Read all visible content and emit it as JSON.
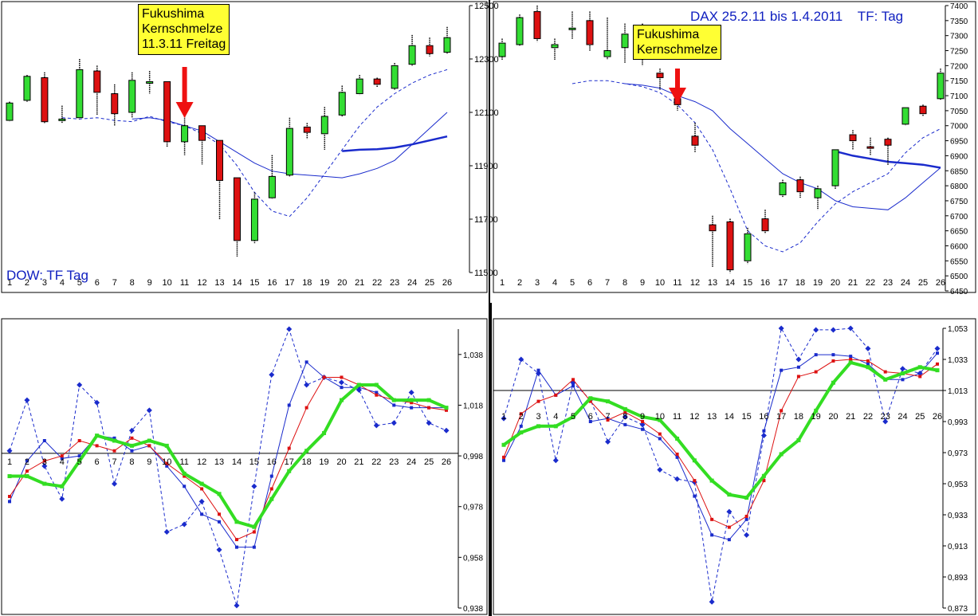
{
  "colors": {
    "bull": "#33dd33",
    "bear": "#dd1111",
    "ma": "#1a2bcc",
    "green": "#33dd22",
    "red": "#dd1111",
    "blue": "#1a2bcc",
    "arrow": "#ee1111",
    "callout": "#ffff33"
  },
  "chart_data": [
    {
      "type": "candlestick",
      "title": "DOW: TF Tag",
      "callout": [
        "Fukushima",
        "Kernschmelze",
        "11.3.11 Freitag"
      ],
      "categories": [
        "1",
        "2",
        "3",
        "4",
        "5",
        "6",
        "7",
        "8",
        "9",
        "10",
        "11",
        "12",
        "13",
        "14",
        "15",
        "16",
        "17",
        "18",
        "19",
        "20",
        "21",
        "22",
        "23",
        "24",
        "25",
        "26"
      ],
      "ylim": [
        11500,
        12500
      ],
      "yticks": [
        "11500",
        "11700",
        "11900",
        "12100",
        "12300",
        "12500"
      ],
      "arrow_at": 11,
      "candles": [
        {
          "o": 12070,
          "h": 12140,
          "l": 12065,
          "c": 12135
        },
        {
          "o": 12145,
          "h": 12240,
          "l": 12140,
          "c": 12235
        },
        {
          "o": 12230,
          "h": 12250,
          "l": 12060,
          "c": 12065
        },
        {
          "o": 12070,
          "h": 12125,
          "l": 12060,
          "c": 12075
        },
        {
          "o": 12080,
          "h": 12300,
          "l": 12075,
          "c": 12260
        },
        {
          "o": 12255,
          "h": 12275,
          "l": 12090,
          "c": 12175
        },
        {
          "o": 12170,
          "h": 12205,
          "l": 12050,
          "c": 12095
        },
        {
          "o": 12100,
          "h": 12250,
          "l": 12080,
          "c": 12220
        },
        {
          "o": 12210,
          "h": 12255,
          "l": 12170,
          "c": 12215
        },
        {
          "o": 12215,
          "h": 12215,
          "l": 11970,
          "c": 11990
        },
        {
          "o": 11990,
          "h": 12100,
          "l": 11940,
          "c": 12050
        },
        {
          "o": 12050,
          "h": 12050,
          "l": 11905,
          "c": 11995
        },
        {
          "o": 11995,
          "h": 11995,
          "l": 11700,
          "c": 11845
        },
        {
          "o": 11855,
          "h": 11855,
          "l": 11560,
          "c": 11620
        },
        {
          "o": 11620,
          "h": 11800,
          "l": 11610,
          "c": 11775
        },
        {
          "o": 11780,
          "h": 11940,
          "l": 11775,
          "c": 11860
        },
        {
          "o": 11865,
          "h": 12080,
          "l": 11860,
          "c": 12040
        },
        {
          "o": 12045,
          "h": 12060,
          "l": 12000,
          "c": 12025
        },
        {
          "o": 12020,
          "h": 12120,
          "l": 11960,
          "c": 12085
        },
        {
          "o": 12090,
          "h": 12200,
          "l": 12085,
          "c": 12175
        },
        {
          "o": 12170,
          "h": 12240,
          "l": 12165,
          "c": 12225
        },
        {
          "o": 12225,
          "h": 12230,
          "l": 12195,
          "c": 12205
        },
        {
          "o": 12190,
          "h": 12285,
          "l": 12185,
          "c": 12275
        },
        {
          "o": 12280,
          "h": 12390,
          "l": 12275,
          "c": 12350
        },
        {
          "o": 12350,
          "h": 12380,
          "l": 12310,
          "c": 12320
        },
        {
          "o": 12325,
          "h": 12420,
          "l": 12320,
          "c": 12380
        }
      ],
      "lines": [
        {
          "style": "dashed",
          "x": [
            4,
            5,
            6,
            7,
            8,
            9,
            10,
            11,
            12,
            13,
            14,
            15,
            16,
            17,
            18,
            19,
            20,
            21,
            22,
            23,
            24,
            25,
            26
          ],
          "y": [
            12080,
            12075,
            12080,
            12070,
            12065,
            12085,
            12065,
            12050,
            12020,
            11980,
            11900,
            11800,
            11730,
            11710,
            11780,
            11870,
            11960,
            12050,
            12120,
            12170,
            12210,
            12240,
            12260
          ]
        },
        {
          "style": "solid",
          "x": [
            8,
            9,
            10,
            11,
            12,
            13,
            14,
            15,
            16,
            17,
            18,
            19,
            20,
            21,
            22,
            23,
            24,
            25,
            26
          ],
          "y": [
            12075,
            12080,
            12070,
            12050,
            12030,
            11990,
            11950,
            11910,
            11880,
            11870,
            11865,
            11860,
            11855,
            11870,
            11890,
            11920,
            11980,
            12040,
            12100
          ]
        },
        {
          "style": "thick",
          "x": [
            20,
            21,
            22,
            23,
            24,
            25,
            26
          ],
          "y": [
            11955,
            11960,
            11962,
            11968,
            11980,
            11995,
            12010
          ]
        }
      ]
    },
    {
      "type": "candlestick",
      "title": "DAX 25.2.11 bis 1.4.2011    TF: Tag",
      "callout": [
        "Fukushima",
        "Kernschmelze"
      ],
      "categories": [
        "1",
        "2",
        "3",
        "4",
        "5",
        "6",
        "7",
        "8",
        "9",
        "10",
        "11",
        "12",
        "13",
        "14",
        "15",
        "16",
        "17",
        "18",
        "19",
        "20",
        "21",
        "22",
        "23",
        "24",
        "25",
        "26"
      ],
      "ylim": [
        6450,
        7400
      ],
      "yticks": [
        "6450",
        "6500",
        "6550",
        "6600",
        "6650",
        "6700",
        "6750",
        "6800",
        "6850",
        "6900",
        "6950",
        "7000",
        "7050",
        "7100",
        "7150",
        "7200",
        "7250",
        "7300",
        "7350",
        "7400"
      ],
      "arrow_at": 11,
      "candles": [
        {
          "o": 7230,
          "h": 7290,
          "l": 7220,
          "c": 7275
        },
        {
          "o": 7270,
          "h": 7370,
          "l": 7265,
          "c": 7360
        },
        {
          "o": 7380,
          "h": 7400,
          "l": 7280,
          "c": 7290
        },
        {
          "o": 7260,
          "h": 7290,
          "l": 7220,
          "c": 7270
        },
        {
          "o": 7320,
          "h": 7380,
          "l": 7290,
          "c": 7325
        },
        {
          "o": 7350,
          "h": 7380,
          "l": 7250,
          "c": 7270
        },
        {
          "o": 7230,
          "h": 7360,
          "l": 7220,
          "c": 7250
        },
        {
          "o": 7260,
          "h": 7340,
          "l": 7210,
          "c": 7305
        },
        {
          "o": 7270,
          "h": 7340,
          "l": 7200,
          "c": 7230
        },
        {
          "o": 7175,
          "h": 7190,
          "l": 7120,
          "c": 7160
        },
        {
          "o": 7090,
          "h": 7105,
          "l": 7050,
          "c": 7070
        },
        {
          "o": 6965,
          "h": 7010,
          "l": 6910,
          "c": 6935
        },
        {
          "o": 6670,
          "h": 6700,
          "l": 6530,
          "c": 6650
        },
        {
          "o": 6680,
          "h": 6690,
          "l": 6510,
          "c": 6520
        },
        {
          "o": 6550,
          "h": 6660,
          "l": 6540,
          "c": 6640
        },
        {
          "o": 6690,
          "h": 6720,
          "l": 6640,
          "c": 6650
        },
        {
          "o": 6770,
          "h": 6820,
          "l": 6760,
          "c": 6810
        },
        {
          "o": 6820,
          "h": 6830,
          "l": 6760,
          "c": 6780
        },
        {
          "o": 6760,
          "h": 6800,
          "l": 6720,
          "c": 6790
        },
        {
          "o": 6800,
          "h": 6920,
          "l": 6790,
          "c": 6920
        },
        {
          "o": 6970,
          "h": 6985,
          "l": 6920,
          "c": 6950
        },
        {
          "o": 6930,
          "h": 6960,
          "l": 6900,
          "c": 6925
        },
        {
          "o": 6955,
          "h": 6960,
          "l": 6870,
          "c": 6935
        },
        {
          "o": 7005,
          "h": 7060,
          "l": 7000,
          "c": 7060
        },
        {
          "o": 7065,
          "h": 7070,
          "l": 7030,
          "c": 7040
        },
        {
          "o": 7090,
          "h": 7190,
          "l": 7085,
          "c": 7175
        }
      ],
      "lines": [
        {
          "style": "dashed",
          "x": [
            5,
            6,
            7,
            8,
            9,
            10,
            11,
            12,
            13,
            14,
            15,
            16,
            17,
            18,
            19,
            20,
            21,
            22,
            23,
            24,
            25,
            26
          ],
          "y": [
            7140,
            7150,
            7150,
            7140,
            7130,
            7110,
            7070,
            7010,
            6920,
            6790,
            6650,
            6600,
            6580,
            6610,
            6680,
            6740,
            6780,
            6810,
            6840,
            6910,
            6960,
            6990
          ]
        },
        {
          "style": "solid",
          "x": [
            8,
            9,
            10,
            11,
            12,
            13,
            14,
            15,
            16,
            17,
            18,
            19,
            20,
            21,
            22,
            23,
            24,
            25,
            26
          ],
          "y": [
            7140,
            7135,
            7125,
            7100,
            7080,
            7050,
            6990,
            6940,
            6890,
            6840,
            6810,
            6790,
            6750,
            6730,
            6725,
            6720,
            6760,
            6810,
            6860
          ]
        },
        {
          "style": "thick",
          "x": [
            20,
            21,
            22,
            23,
            24,
            25,
            26
          ],
          "y": [
            6915,
            6900,
            6890,
            6880,
            6875,
            6870,
            6860
          ]
        }
      ]
    },
    {
      "type": "line",
      "categories": [
        "1",
        "2",
        "3",
        "4",
        "5",
        "6",
        "7",
        "8",
        "9",
        "10",
        "11",
        "12",
        "13",
        "14",
        "15",
        "16",
        "17",
        "18",
        "19",
        "20",
        "21",
        "22",
        "23",
        "24",
        "25",
        "26"
      ],
      "ylim": [
        0.938,
        1.048
      ],
      "baseline": 0.999,
      "yticks": [
        "0,938",
        "0,958",
        "0,978",
        "0,998",
        "1,018",
        "1,038"
      ],
      "series": [
        {
          "color": "blue",
          "style": "dashed",
          "marker": "diamond",
          "values": [
            1.0,
            1.02,
            0.994,
            0.981,
            1.026,
            1.019,
            0.987,
            1.008,
            1.016,
            0.968,
            0.971,
            0.98,
            0.961,
            0.939,
            0.986,
            1.03,
            1.048,
            1.026,
            1.029,
            1.027,
            1.024,
            1.01,
            1.011,
            1.023,
            1.011,
            1.008
          ]
        },
        {
          "color": "blue",
          "style": "solid",
          "marker": "square",
          "values": [
            0.98,
            0.996,
            1.004,
            0.997,
            0.998,
            1.006,
            1.005,
            1.0,
            1.002,
            0.994,
            0.986,
            0.975,
            0.972,
            0.962,
            0.962,
            0.99,
            1.018,
            1.035,
            1.029,
            1.025,
            1.025,
            1.023,
            1.018,
            1.017,
            1.017,
            1.017
          ]
        },
        {
          "color": "red",
          "style": "solid",
          "marker": "square",
          "values": [
            0.982,
            0.992,
            0.996,
            0.998,
            1.004,
            1.002,
            1.0,
            1.005,
            1.002,
            0.995,
            0.99,
            0.985,
            0.975,
            0.965,
            0.968,
            0.985,
            1.001,
            1.017,
            1.029,
            1.029,
            1.026,
            1.022,
            1.02,
            1.019,
            1.017,
            1.016
          ]
        },
        {
          "color": "green",
          "style": "thick",
          "marker": "square",
          "values": [
            0.99,
            0.99,
            0.987,
            0.986,
            0.996,
            1.006,
            1.004,
            1.002,
            1.004,
            1.002,
            0.991,
            0.987,
            0.983,
            0.972,
            0.97,
            0.981,
            0.992,
            1.0,
            1.007,
            1.02,
            1.026,
            1.026,
            1.02,
            1.02,
            1.02,
            1.017
          ]
        }
      ]
    },
    {
      "type": "line",
      "categories": [
        "1",
        "2",
        "3",
        "4",
        "5",
        "6",
        "7",
        "8",
        "9",
        "10",
        "11",
        "12",
        "13",
        "14",
        "15",
        "16",
        "17",
        "18",
        "19",
        "20",
        "21",
        "22",
        "23",
        "24",
        "25",
        "26"
      ],
      "ylim": [
        0.873,
        1.053
      ],
      "baseline": 1.013,
      "yticks": [
        "0,873",
        "0,893",
        "0,913",
        "0,933",
        "0,953",
        "0,973",
        "0,993",
        "1,013",
        "1,033",
        "1,053"
      ],
      "series": [
        {
          "color": "blue",
          "style": "dashed",
          "marker": "diamond",
          "values": [
            0.995,
            1.033,
            1.024,
            0.968,
            1.018,
            1.007,
            0.98,
            0.996,
            0.991,
            0.962,
            0.956,
            0.954,
            0.877,
            0.935,
            0.92,
            0.984,
            1.053,
            1.033,
            1.052,
            1.052,
            1.053,
            1.04,
            0.993,
            1.027,
            1.024,
            1.04
          ]
        },
        {
          "color": "blue",
          "style": "solid",
          "marker": "square",
          "values": [
            0.968,
            0.99,
            1.026,
            1.01,
            1.016,
            0.993,
            0.995,
            0.991,
            0.988,
            0.982,
            0.97,
            0.945,
            0.92,
            0.917,
            0.93,
            0.987,
            1.026,
            1.028,
            1.036,
            1.036,
            1.035,
            1.03,
            1.02,
            1.02,
            1.024,
            1.037
          ]
        },
        {
          "color": "red",
          "style": "solid",
          "marker": "square",
          "values": [
            0.97,
            0.998,
            1.006,
            1.01,
            1.02,
            1.006,
            0.994,
            0.999,
            0.993,
            0.985,
            0.972,
            0.955,
            0.93,
            0.925,
            0.932,
            0.955,
            1.0,
            1.022,
            1.025,
            1.032,
            1.033,
            1.032,
            1.025,
            1.024,
            1.022,
            1.03
          ]
        },
        {
          "color": "green",
          "style": "thick",
          "marker": "square",
          "values": [
            0.978,
            0.986,
            0.99,
            0.99,
            0.996,
            1.008,
            1.006,
            1.001,
            0.996,
            0.994,
            0.982,
            0.968,
            0.955,
            0.946,
            0.944,
            0.958,
            0.972,
            0.981,
            1.0,
            1.018,
            1.031,
            1.028,
            1.02,
            1.024,
            1.028,
            1.026
          ]
        }
      ]
    }
  ]
}
